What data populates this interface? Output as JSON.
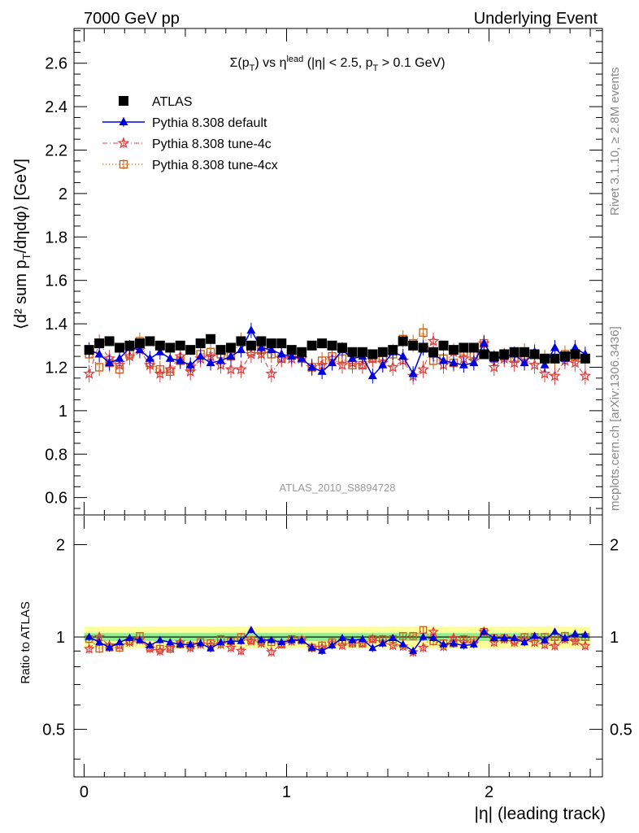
{
  "header": {
    "left": "7000 GeV pp",
    "right": "Underlying Event"
  },
  "side_text": {
    "top": "Rivet 3.1.10, ≥ 2.8M events",
    "bottom": "mcplots.cern.ch [arXiv:1306.3436]"
  },
  "watermark": "ATLAS_2010_S8894728",
  "colors": {
    "atlas": "#000000",
    "default": "#0000dd",
    "tune4c": "#e04040",
    "tune4cx": "#c8641e",
    "band_green": "#90ee90",
    "band_yellow": "#ffff99"
  },
  "chart_data": {
    "type": "scatter",
    "title": "Σ(p_T) vs η^lead (|η| < 2.5, p_T > 0.1 GeV)",
    "xlabel": "|η| (leading track)",
    "ylabel": "⟨d² sum p_T/dηdφ⟩ [GeV]",
    "ratio_ylabel": "Ratio to ATLAS",
    "xlim": [
      -0.05,
      2.56
    ],
    "ylim": [
      0.52,
      2.76
    ],
    "ratio_ylim": [
      0.35,
      2.5
    ],
    "ratio_scale": "log",
    "x_ticks": [
      "0",
      "1",
      "2"
    ],
    "y_ticks": [
      "0.6",
      "0.8",
      "1",
      "1.2",
      "1.4",
      "1.6",
      "1.8",
      "2",
      "2.2",
      "2.4",
      "2.6"
    ],
    "ratio_ticks": [
      "0.5",
      "1",
      "2"
    ],
    "legend_position": "top-left",
    "x": [
      0.025,
      0.075,
      0.125,
      0.175,
      0.225,
      0.275,
      0.325,
      0.375,
      0.425,
      0.475,
      0.525,
      0.575,
      0.625,
      0.675,
      0.725,
      0.775,
      0.825,
      0.875,
      0.925,
      0.975,
      1.025,
      1.075,
      1.125,
      1.175,
      1.225,
      1.275,
      1.325,
      1.375,
      1.425,
      1.475,
      1.525,
      1.575,
      1.625,
      1.675,
      1.725,
      1.775,
      1.825,
      1.875,
      1.925,
      1.975,
      2.025,
      2.075,
      2.125,
      2.175,
      2.225,
      2.275,
      2.325,
      2.375,
      2.425,
      2.475
    ],
    "series": [
      {
        "name": "ATLAS",
        "marker": "square",
        "values": [
          1.28,
          1.31,
          1.32,
          1.29,
          1.3,
          1.31,
          1.32,
          1.3,
          1.29,
          1.3,
          1.28,
          1.31,
          1.33,
          1.28,
          1.29,
          1.32,
          1.3,
          1.32,
          1.31,
          1.31,
          1.28,
          1.27,
          1.3,
          1.31,
          1.3,
          1.29,
          1.27,
          1.27,
          1.26,
          1.27,
          1.28,
          1.32,
          1.3,
          1.29,
          1.27,
          1.3,
          1.28,
          1.29,
          1.29,
          1.26,
          1.25,
          1.26,
          1.27,
          1.27,
          1.26,
          1.24,
          1.24,
          1.25,
          1.26,
          1.24
        ],
        "band": 0.04
      },
      {
        "name": "Pythia 8.308 default",
        "marker": "triangle",
        "values": [
          1.28,
          1.26,
          1.22,
          1.24,
          1.29,
          1.28,
          1.24,
          1.27,
          1.24,
          1.23,
          1.21,
          1.25,
          1.22,
          1.23,
          1.25,
          1.28,
          1.37,
          1.29,
          1.28,
          1.26,
          1.25,
          1.24,
          1.2,
          1.18,
          1.22,
          1.28,
          1.24,
          1.25,
          1.16,
          1.21,
          1.27,
          1.25,
          1.17,
          1.29,
          1.26,
          1.23,
          1.22,
          1.21,
          1.22,
          1.31,
          1.24,
          1.25,
          1.26,
          1.22,
          1.27,
          1.21,
          1.29,
          1.24,
          1.29,
          1.26
        ],
        "err": 0.035
      },
      {
        "name": "Pythia 8.308 tune-4c",
        "marker": "star",
        "values": [
          1.17,
          1.31,
          1.24,
          1.21,
          1.25,
          1.28,
          1.21,
          1.17,
          1.19,
          1.25,
          1.18,
          1.24,
          1.25,
          1.21,
          1.19,
          1.19,
          1.26,
          1.26,
          1.17,
          1.24,
          1.24,
          1.24,
          1.2,
          1.21,
          1.24,
          1.21,
          1.22,
          1.21,
          1.24,
          1.22,
          1.2,
          1.23,
          1.16,
          1.19,
          1.32,
          1.21,
          1.27,
          1.24,
          1.23,
          1.31,
          1.2,
          1.24,
          1.22,
          1.24,
          1.21,
          1.17,
          1.16,
          1.23,
          1.22,
          1.16
        ],
        "err": 0.04
      },
      {
        "name": "Pythia 8.308 tune-4cx",
        "marker": "open-square",
        "values": [
          1.26,
          1.2,
          1.22,
          1.19,
          1.26,
          1.32,
          1.22,
          1.19,
          1.18,
          1.23,
          1.2,
          1.26,
          1.27,
          1.26,
          1.25,
          1.32,
          1.27,
          1.28,
          1.26,
          1.24,
          1.26,
          1.24,
          1.2,
          1.23,
          1.25,
          1.24,
          1.21,
          1.21,
          1.24,
          1.25,
          1.26,
          1.33,
          1.31,
          1.36,
          1.23,
          1.24,
          1.22,
          1.27,
          1.26,
          1.31,
          1.24,
          1.25,
          1.24,
          1.27,
          1.26,
          1.24,
          1.24,
          1.26,
          1.25,
          1.24
        ],
        "err": 0.04
      }
    ]
  }
}
